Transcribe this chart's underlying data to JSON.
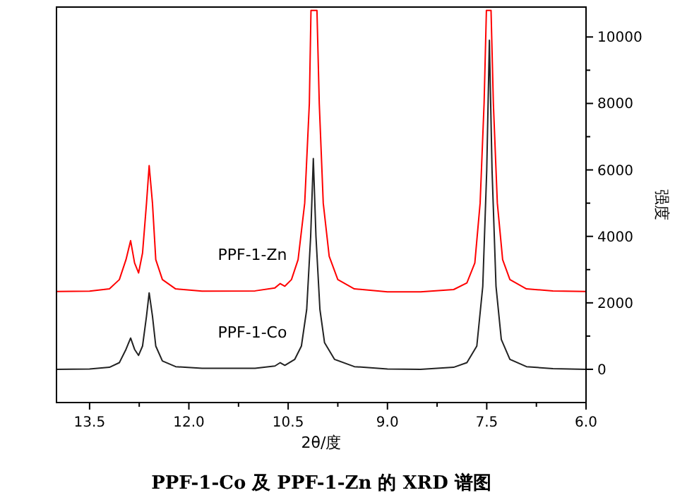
{
  "chart_data": {
    "type": "line",
    "xlabel": "2θ/度",
    "ylabel": "强度",
    "annotations": [
      "PPF-1-Co 及 PPF-1-Zn 的 XRD 谱图"
    ],
    "xlim": [
      14.0,
      6.0
    ],
    "xticks": [
      {
        "value": 13.5,
        "label": "13.5"
      },
      {
        "value": 12.0,
        "label": "12.0"
      },
      {
        "value": 10.5,
        "label": "10.5"
      },
      {
        "value": 9.0,
        "label": "9.0"
      },
      {
        "value": 7.5,
        "label": "7.5"
      },
      {
        "value": 6.0,
        "label": "6.0"
      }
    ],
    "ylim": [
      -1000,
      10900
    ],
    "yticks": [
      0,
      2000,
      4000,
      6000,
      8000,
      10000
    ],
    "grid": false,
    "marker": "none",
    "line_style": "solid",
    "series": [
      {
        "name": "PPF-1-Zn",
        "color": "#ff0000",
        "x": [
          14.0,
          13.5,
          13.2,
          13.05,
          12.95,
          12.88,
          12.82,
          12.76,
          12.7,
          12.64,
          12.6,
          12.55,
          12.5,
          12.4,
          12.2,
          11.8,
          11.0,
          10.7,
          10.62,
          10.55,
          10.45,
          10.35,
          10.25,
          10.18,
          10.155,
          10.065,
          10.03,
          9.97,
          9.88,
          9.75,
          9.5,
          9.0,
          8.5,
          8.0,
          7.8,
          7.68,
          7.6,
          7.54,
          7.505,
          7.435,
          7.4,
          7.34,
          7.26,
          7.15,
          6.9,
          6.5,
          6.0
        ],
        "values": [
          2340,
          2350,
          2420,
          2700,
          3300,
          3870,
          3200,
          2900,
          3500,
          5000,
          6130,
          5000,
          3300,
          2700,
          2420,
          2350,
          2360,
          2450,
          2580,
          2500,
          2700,
          3300,
          5000,
          8000,
          10800,
          10800,
          8000,
          5000,
          3400,
          2700,
          2420,
          2330,
          2330,
          2400,
          2600,
          3200,
          5000,
          8000,
          10800,
          10800,
          8000,
          5000,
          3300,
          2700,
          2420,
          2360,
          2340
        ]
      },
      {
        "name": "PPF-1-Co",
        "color": "#222222",
        "x": [
          14.0,
          13.5,
          13.2,
          13.05,
          12.95,
          12.88,
          12.82,
          12.76,
          12.7,
          12.64,
          12.6,
          12.55,
          12.5,
          12.4,
          12.2,
          11.8,
          11.0,
          10.7,
          10.62,
          10.55,
          10.4,
          10.3,
          10.22,
          10.16,
          10.12,
          10.08,
          10.02,
          9.95,
          9.8,
          9.5,
          9.0,
          8.5,
          8.0,
          7.8,
          7.65,
          7.56,
          7.5,
          7.46,
          7.42,
          7.36,
          7.28,
          7.15,
          6.9,
          6.5,
          6.0
        ],
        "values": [
          0,
          10,
          60,
          200,
          600,
          940,
          600,
          420,
          700,
          1600,
          2300,
          1600,
          700,
          250,
          80,
          30,
          30,
          100,
          200,
          120,
          300,
          700,
          1800,
          4000,
          6340,
          4000,
          1800,
          800,
          300,
          80,
          10,
          0,
          60,
          200,
          700,
          2500,
          6000,
          9900,
          6000,
          2500,
          900,
          300,
          80,
          20,
          0
        ]
      }
    ]
  }
}
